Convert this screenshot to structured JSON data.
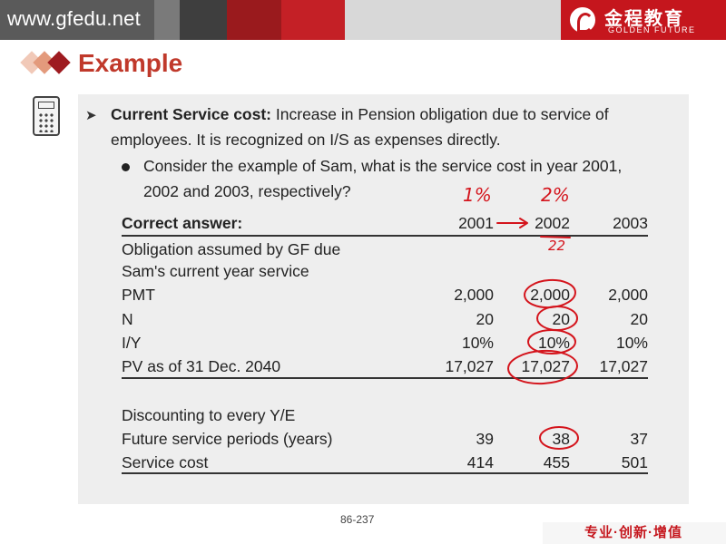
{
  "header": {
    "site_url": "www.gfedu.net",
    "logo_cn": "金程教育",
    "logo_en": "GOLDEN FUTURE"
  },
  "title": "Example",
  "content": {
    "heading_bold": "Current Service cost:",
    "heading_rest": "Increase in Pension obligation due to service of",
    "heading_line2": "employees.  It is recognized on I/S as expenses directly.",
    "bullet_line1": "Consider the example of Sam, what is the service cost in year 2001,",
    "bullet_line2": "2002 and 2003, respectively?"
  },
  "table": {
    "header_label": "Correct answer:",
    "years": [
      "2001",
      "2002",
      "2003"
    ],
    "section1_line1": "Obligation assumed by GF due",
    "section1_line2": "Sam's current year service",
    "rows1": [
      {
        "label": "PMT",
        "values": [
          "2,000",
          "2,000",
          "2,000"
        ]
      },
      {
        "label": "N",
        "values": [
          "20",
          "20",
          "20"
        ]
      },
      {
        "label": "I/Y",
        "values": [
          "10%",
          "10%",
          "10%"
        ]
      },
      {
        "label": "PV as of 31 Dec. 2040",
        "values": [
          "17,027",
          "17,027",
          "17,027"
        ]
      }
    ],
    "section2_line1": "Discounting to every Y/E",
    "rows2": [
      {
        "label": "Future service periods (years)",
        "values": [
          "39",
          "38",
          "37"
        ]
      },
      {
        "label": "Service cost",
        "values": [
          "414",
          "455",
          "501"
        ]
      }
    ]
  },
  "annotations": {
    "note_2001": "1%",
    "note_2002": "2%",
    "note_22": "22"
  },
  "footer": {
    "page_number": "86-237",
    "slogan": "专业·创新·增值"
  },
  "colors": {
    "title_red": "#c0392b",
    "brand_red": "#c5161d",
    "ink_red": "#d4141c",
    "panel_bg": "#eeeeee"
  }
}
